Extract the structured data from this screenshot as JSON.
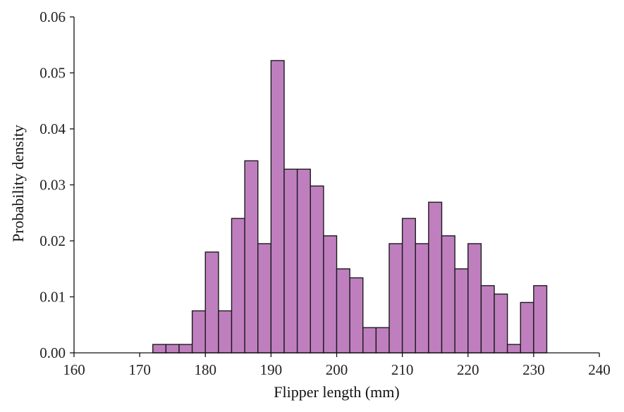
{
  "chart_data": {
    "type": "histogram",
    "title": "",
    "xlabel": "Flipper length (mm)",
    "ylabel": "Probability density",
    "xlim": [
      160,
      240
    ],
    "ylim": [
      0,
      0.06
    ],
    "xticks": [
      160,
      170,
      180,
      190,
      200,
      210,
      220,
      230,
      240
    ],
    "xtick_labels": [
      "160",
      "170",
      "180",
      "190",
      "200",
      "210",
      "220",
      "230",
      "240"
    ],
    "yticks": [
      0,
      0.01,
      0.02,
      0.03,
      0.04,
      0.05,
      0.06
    ],
    "ytick_labels": [
      "0.00",
      "0.01",
      "0.02",
      "0.03",
      "0.04",
      "0.05",
      "0.06"
    ],
    "grid": false,
    "bar_color": "#bf7fbf",
    "edge_color": "#1a1a1a",
    "bins": [
      {
        "x0": 172,
        "x1": 174,
        "value": 0.0015
      },
      {
        "x0": 174,
        "x1": 176,
        "value": 0.0015
      },
      {
        "x0": 176,
        "x1": 178,
        "value": 0.0015
      },
      {
        "x0": 178,
        "x1": 180,
        "value": 0.0075
      },
      {
        "x0": 180,
        "x1": 182,
        "value": 0.018
      },
      {
        "x0": 182,
        "x1": 184,
        "value": 0.0075
      },
      {
        "x0": 184,
        "x1": 186,
        "value": 0.024
      },
      {
        "x0": 186,
        "x1": 188,
        "value": 0.0343
      },
      {
        "x0": 188,
        "x1": 190,
        "value": 0.0195
      },
      {
        "x0": 190,
        "x1": 192,
        "value": 0.0522
      },
      {
        "x0": 192,
        "x1": 194,
        "value": 0.0328
      },
      {
        "x0": 194,
        "x1": 196,
        "value": 0.0328
      },
      {
        "x0": 196,
        "x1": 198,
        "value": 0.0298
      },
      {
        "x0": 198,
        "x1": 200,
        "value": 0.0209
      },
      {
        "x0": 200,
        "x1": 202,
        "value": 0.015
      },
      {
        "x0": 202,
        "x1": 204,
        "value": 0.0134
      },
      {
        "x0": 204,
        "x1": 206,
        "value": 0.0045
      },
      {
        "x0": 206,
        "x1": 208,
        "value": 0.0045
      },
      {
        "x0": 208,
        "x1": 210,
        "value": 0.0195
      },
      {
        "x0": 210,
        "x1": 212,
        "value": 0.024
      },
      {
        "x0": 212,
        "x1": 214,
        "value": 0.0195
      },
      {
        "x0": 214,
        "x1": 216,
        "value": 0.0269
      },
      {
        "x0": 216,
        "x1": 218,
        "value": 0.0209
      },
      {
        "x0": 218,
        "x1": 220,
        "value": 0.015
      },
      {
        "x0": 220,
        "x1": 222,
        "value": 0.0195
      },
      {
        "x0": 222,
        "x1": 224,
        "value": 0.012
      },
      {
        "x0": 224,
        "x1": 226,
        "value": 0.0105
      },
      {
        "x0": 226,
        "x1": 228,
        "value": 0.0015
      },
      {
        "x0": 228,
        "x1": 230,
        "value": 0.009
      },
      {
        "x0": 230,
        "x1": 232,
        "value": 0.012
      }
    ]
  }
}
